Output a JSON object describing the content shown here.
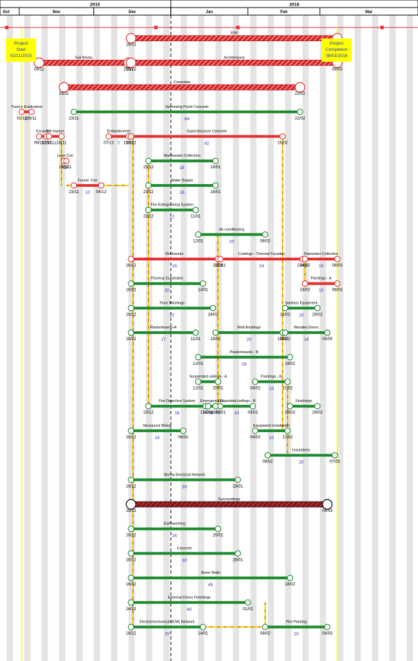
{
  "timescale": {
    "years": [
      {
        "label": "2015",
        "day": 0
      },
      {
        "label": "2016",
        "day": 61
      }
    ],
    "months": [
      {
        "label": "Oct",
        "day": -31
      },
      {
        "label": "Nov",
        "day": 0
      },
      {
        "label": "Dec",
        "day": 30
      },
      {
        "label": "Jan",
        "day": 61
      },
      {
        "label": "Feb",
        "day": 92
      },
      {
        "label": "Mar",
        "day": 121
      }
    ]
  },
  "milestones": [
    {
      "lines": [
        "Project",
        "Start",
        "02/11/2015"
      ],
      "day": 1
    },
    {
      "lines": [
        "Project",
        "Completion",
        "08/03/2016"
      ],
      "day": 128
    }
  ],
  "status_line_day": 45,
  "activities": [
    {
      "name": "E/M",
      "start": "16/12",
      "end": "08/03",
      "s": 45,
      "e": 128,
      "row": 1,
      "kind": "summary",
      "dur": ""
    },
    {
      "name": "Soil  Works",
      "start": "09/11",
      "end": "15/12",
      "s": 8,
      "e": 44,
      "row": 2,
      "kind": "summary",
      "dur": ""
    },
    {
      "name": "Architectural",
      "start": "16/12",
      "end": "08/03",
      "s": 45,
      "e": 128,
      "row": 2,
      "kind": "summary",
      "dur": ""
    },
    {
      "name": "Concretes",
      "start": "19/11",
      "end": "22/02",
      "s": 18,
      "e": 113,
      "row": 3,
      "kind": "summary",
      "dur": ""
    },
    {
      "name": "Swimming Pools Concrete",
      "start": "23/11",
      "end": "22/02",
      "s": 22,
      "e": 113,
      "row": 4,
      "kind": "normal",
      "dur": "64"
    },
    {
      "name": "Trees's Eradication",
      "start": "02/11",
      "end": "06/11",
      "s": 1,
      "e": 5,
      "row": 4,
      "kind": "critical",
      "dur": "5"
    },
    {
      "name": "Excavat",
      "start": "09/11",
      "end": "12/11",
      "s": 8,
      "e": 11,
      "row": 5,
      "kind": "critical",
      "dur": "4"
    },
    {
      "name": "Soil improv.",
      "start": "13/11",
      "end": "18/11",
      "s": 12,
      "e": 17,
      "row": 5,
      "kind": "critical",
      "dur": "4"
    },
    {
      "name": "Embankments",
      "start": "07/12",
      "end": "15/12",
      "s": 36,
      "e": 44,
      "row": 5,
      "kind": "critical",
      "dur": "7"
    },
    {
      "name": "Superstructure Concrete",
      "start": "16/12",
      "end": "15/02",
      "s": 45,
      "e": 106,
      "row": 5,
      "kind": "critical",
      "dur": "42"
    },
    {
      "name": "Lean Con",
      "start": "19/11",
      "end": "20/11",
      "s": 18,
      "e": 19,
      "row": 6,
      "kind": "critical",
      "dur": "2"
    },
    {
      "name": "Wastewater Collection",
      "start": "23/12",
      "end": "19/01",
      "s": 52,
      "e": 79,
      "row": 6,
      "kind": "normal",
      "dur": "18"
    },
    {
      "name": "Found. Con",
      "start": "23/11",
      "end": "04/12",
      "s": 22,
      "e": 33,
      "row": 7,
      "kind": "critical",
      "dur": "10"
    },
    {
      "name": "Water Supply",
      "start": "23/12",
      "end": "19/01",
      "s": 52,
      "e": 79,
      "row": 7,
      "kind": "normal",
      "dur": "18"
    },
    {
      "name": "Fire Extinguishing System",
      "start": "23/12",
      "end": "11/01",
      "s": 52,
      "e": 71,
      "row": 8,
      "kind": "normal",
      "dur": "12"
    },
    {
      "name": "Air conditioning",
      "start": "12/01",
      "end": "08/02",
      "s": 72,
      "e": 99,
      "row": 9,
      "kind": "normal",
      "dur": "20"
    },
    {
      "name": "Brickworks",
      "start": "16/12",
      "end": "20/01",
      "s": 45,
      "e": 80,
      "row": 10,
      "kind": "critical",
      "dur": "24"
    },
    {
      "name": "Coatings - Thermal Facades",
      "start": "21/01",
      "end": "23/02",
      "s": 81,
      "e": 114,
      "row": 10,
      "kind": "critical",
      "dur": "24"
    },
    {
      "name": "Rainwater Collection",
      "start": "24/02",
      "end": "08/03",
      "s": 115,
      "e": 128,
      "row": 10,
      "kind": "critical",
      "dur": "10"
    },
    {
      "name": "Flooring Substrates",
      "start": "16/12",
      "end": "14/01",
      "s": 45,
      "e": 74,
      "row": 11,
      "kind": "normal",
      "dur": "20"
    },
    {
      "name": "Paintings - A",
      "start": "24/02",
      "end": "08/03",
      "s": 115,
      "e": 128,
      "row": 11,
      "kind": "critical",
      "dur": "10"
    },
    {
      "name": "Floor finishings",
      "start": "16/12",
      "end": "18/01",
      "s": 45,
      "e": 78,
      "row": 12,
      "kind": "normal",
      "dur": "22"
    },
    {
      "name": "Sanitary Equipment",
      "start": "16/02",
      "end": "29/02",
      "s": 107,
      "e": 120,
      "row": 12,
      "kind": "normal",
      "dur": "10"
    },
    {
      "name": "Plasterboards-A",
      "start": "16/12",
      "end": "11/01",
      "s": 45,
      "e": 71,
      "row": 13,
      "kind": "normal",
      "dur": "17"
    },
    {
      "name": "Wall finishings",
      "start": "19/01",
      "end": "15/02",
      "s": 79,
      "e": 106,
      "row": 13,
      "kind": "normal",
      "dur": "20"
    },
    {
      "name": "Wooden Doors",
      "start": "16/02",
      "end": "04/03",
      "s": 107,
      "e": 124,
      "row": 13,
      "kind": "normal",
      "dur": "14"
    },
    {
      "name": "Plasterboards - B",
      "start": "12/01",
      "end": "18/02",
      "s": 72,
      "e": 109,
      "row": 14,
      "kind": "normal",
      "dur": "29"
    },
    {
      "name": "Suspended ceilings - A",
      "start": "12/01",
      "end": "20/01",
      "s": 72,
      "e": 80,
      "row": 15,
      "kind": "normal",
      "dur": ""
    },
    {
      "name": "Paintings - B",
      "start": "04/02",
      "end": "17/02",
      "s": 95,
      "e": 108,
      "row": 15,
      "kind": "normal",
      "dur": "10"
    },
    {
      "name": "Fire Detection System",
      "start": "23/12",
      "end": "15/01",
      "s": 52,
      "e": 75,
      "row": 16,
      "kind": "normal",
      "dur": "16"
    },
    {
      "name": "Emergency Fl",
      "start": "16/01",
      "end": "19/01",
      "s": 76,
      "e": 79,
      "row": 16,
      "kind": "normal",
      "dur": "6"
    },
    {
      "name": "Suspended ceilings - B",
      "start": "21/01",
      "end": "03/02",
      "s": 81,
      "e": 94,
      "row": 16,
      "kind": "normal",
      "dur": "10"
    },
    {
      "name": "Finishings",
      "start": "18/02",
      "end": "29/02",
      "s": 109,
      "e": 120,
      "row": 16,
      "kind": "normal",
      "dur": ""
    },
    {
      "name": "Structured Wiring",
      "start": "16/12",
      "end": "06/01",
      "s": 45,
      "e": 66,
      "row": 17,
      "kind": "normal",
      "dur": "14"
    },
    {
      "name": "Equipment Installation",
      "start": "04/02",
      "end": "17/02",
      "s": 95,
      "e": 108,
      "row": 17,
      "kind": "normal",
      "dur": "10"
    },
    {
      "name": "Insulations",
      "start": "09/02",
      "end": "07/03",
      "s": 100,
      "e": 127,
      "row": 18,
      "kind": "normal",
      "dur": "20"
    },
    {
      "name": "Strong Electrical Network",
      "start": "16/12",
      "end": "28/01",
      "s": 45,
      "e": 88,
      "row": 19,
      "kind": "normal",
      "dur": "30"
    },
    {
      "name": "Surroundings",
      "start": "16/12",
      "end": "04/03",
      "s": 45,
      "e": 124,
      "row": 20,
      "kind": "summary2",
      "dur": ""
    },
    {
      "name": "Earthworking",
      "start": "16/12",
      "end": "20/01",
      "s": 45,
      "e": 80,
      "row": 21,
      "kind": "normal",
      "dur": "24"
    },
    {
      "name": "Concrete",
      "start": "16/12",
      "end": "28/01",
      "s": 45,
      "e": 88,
      "row": 22,
      "kind": "normal",
      "dur": "30"
    },
    {
      "name": "Stone Walls",
      "start": "16/12",
      "end": "18/02",
      "s": 45,
      "e": 109,
      "row": 23,
      "kind": "normal",
      "dur": "45"
    },
    {
      "name": "External Floors Finishings",
      "start": "16/12",
      "end": "01/02",
      "s": 45,
      "e": 92,
      "row": 24,
      "kind": "normal",
      "dur": "40"
    },
    {
      "name": "Electromechanical (E/M) Network",
      "start": "16/12",
      "end": "14/01",
      "s": 45,
      "e": 74,
      "row": 25,
      "kind": "normal",
      "dur": "20"
    },
    {
      "name": "Plot Planting",
      "start": "08/02",
      "end": "04/03",
      "s": 99,
      "e": 124,
      "row": 25,
      "kind": "normal",
      "dur": "20"
    }
  ],
  "colors": {
    "critical": "#e53030",
    "normal": "#1e8a2e",
    "summary_fill": "#d8262a",
    "summary2_fill": "#8a1418",
    "milestone_fill": "#ffff00",
    "status_line": "#000000",
    "today_line": "#ffff00",
    "link_normal": "#e8d800",
    "link_critical": "#e53030",
    "duration_text": "#1f35c8"
  }
}
